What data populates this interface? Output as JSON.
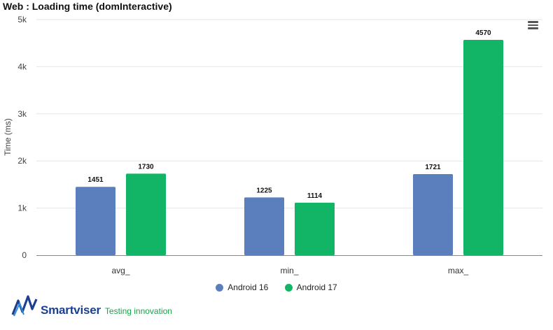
{
  "title": "Web : Loading time (domInteractive)",
  "colors": {
    "android16": "#5b7fbd",
    "android17": "#12b565",
    "grid": "#e6e6e6",
    "axis": "#888888"
  },
  "chart_data": {
    "type": "bar",
    "categories": [
      "avg_",
      "min_",
      "max_"
    ],
    "series": [
      {
        "name": "Android 16",
        "values": [
          1451,
          1225,
          1721
        ]
      },
      {
        "name": "Android 17",
        "values": [
          1730,
          1114,
          4570
        ]
      }
    ],
    "ylabel": "Time (ms)",
    "ylim": [
      0,
      5000
    ],
    "yticks": [
      "0",
      "1k",
      "2k",
      "3k",
      "4k",
      "5k"
    ],
    "grid": true,
    "legend": "bottom-center"
  },
  "menu_icon": "hamburger-menu-icon",
  "logo": {
    "icon": "smartviser-logo-icon",
    "name": "Smartviser",
    "tagline": "Testing innovation"
  }
}
